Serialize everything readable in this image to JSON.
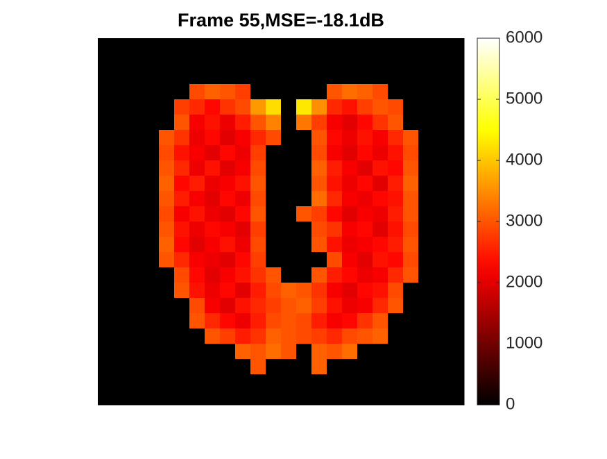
{
  "chart_data": {
    "type": "heatmap",
    "title": "Frame 55,MSE=-18.1dB",
    "colormap": "hot",
    "clim": [
      0,
      6000
    ],
    "cticks": [
      0,
      1000,
      2000,
      3000,
      4000,
      5000,
      6000
    ],
    "z": [
      [
        0,
        0,
        0,
        0,
        0,
        0,
        0,
        0,
        0,
        0,
        0,
        0,
        0,
        0,
        0,
        0,
        0,
        0,
        0,
        0,
        0,
        0,
        0,
        0
      ],
      [
        0,
        0,
        0,
        0,
        0,
        0,
        0,
        0,
        0,
        0,
        0,
        0,
        0,
        0,
        0,
        0,
        0,
        0,
        0,
        0,
        0,
        0,
        0,
        0
      ],
      [
        0,
        0,
        0,
        0,
        0,
        0,
        0,
        0,
        0,
        0,
        0,
        0,
        0,
        0,
        0,
        0,
        0,
        0,
        0,
        0,
        0,
        0,
        0,
        0
      ],
      [
        0,
        0,
        0,
        0,
        0,
        0,
        2900,
        3100,
        3000,
        2800,
        0,
        0,
        0,
        0,
        0,
        3000,
        3200,
        3100,
        2900,
        0,
        0,
        0,
        0,
        0
      ],
      [
        0,
        0,
        0,
        0,
        0,
        2800,
        2600,
        2300,
        2700,
        2900,
        3600,
        4200,
        0,
        4300,
        3500,
        2600,
        2400,
        2800,
        3000,
        2900,
        0,
        0,
        0,
        0
      ],
      [
        0,
        0,
        0,
        0,
        0,
        3000,
        2200,
        2400,
        2100,
        2500,
        3000,
        3400,
        0,
        3300,
        2800,
        2200,
        2000,
        2300,
        2700,
        3000,
        0,
        0,
        0,
        0
      ],
      [
        0,
        0,
        0,
        0,
        3000,
        2700,
        2100,
        2300,
        2000,
        2200,
        2600,
        2900,
        0,
        0,
        3000,
        2300,
        2100,
        2400,
        2200,
        2600,
        3000,
        0,
        0,
        0
      ],
      [
        0,
        0,
        0,
        0,
        2900,
        2400,
        2200,
        2000,
        2300,
        2100,
        2800,
        0,
        0,
        0,
        2900,
        2200,
        2000,
        2300,
        2100,
        2400,
        2900,
        0,
        0,
        0
      ],
      [
        0,
        0,
        0,
        0,
        3000,
        2600,
        2100,
        2400,
        2000,
        2200,
        2900,
        0,
        0,
        0,
        3100,
        2500,
        2200,
        2000,
        2400,
        2300,
        3000,
        0,
        0,
        0
      ],
      [
        0,
        0,
        0,
        0,
        3100,
        2300,
        2500,
        2100,
        2200,
        2400,
        3000,
        0,
        0,
        0,
        3000,
        2400,
        2100,
        2300,
        2000,
        2500,
        3100,
        0,
        0,
        0
      ],
      [
        0,
        0,
        0,
        0,
        3000,
        2500,
        2200,
        2000,
        2300,
        2100,
        2900,
        0,
        0,
        0,
        3200,
        2600,
        2200,
        2100,
        2300,
        2400,
        3000,
        0,
        0,
        0
      ],
      [
        0,
        0,
        0,
        0,
        2900,
        2200,
        2400,
        2100,
        2000,
        2300,
        3000,
        0,
        0,
        3000,
        2800,
        2300,
        2000,
        2200,
        2100,
        2500,
        3000,
        0,
        0,
        0
      ],
      [
        0,
        0,
        0,
        0,
        3000,
        2400,
        2100,
        2300,
        2200,
        2000,
        2800,
        0,
        0,
        0,
        2900,
        2700,
        2200,
        2300,
        2000,
        2400,
        2900,
        0,
        0,
        0
      ],
      [
        0,
        0,
        0,
        0,
        3100,
        2300,
        2000,
        2200,
        2400,
        2100,
        2900,
        0,
        0,
        0,
        3000,
        2400,
        2100,
        2200,
        2300,
        2500,
        3000,
        0,
        0,
        0
      ],
      [
        0,
        0,
        0,
        0,
        3000,
        2600,
        2200,
        2100,
        2000,
        2300,
        2800,
        0,
        0,
        0,
        0,
        2900,
        2200,
        2000,
        2400,
        2300,
        2900,
        0,
        0,
        0
      ],
      [
        0,
        0,
        0,
        0,
        0,
        2900,
        2300,
        2000,
        2200,
        2400,
        2700,
        3000,
        0,
        0,
        3000,
        2500,
        2300,
        2100,
        2200,
        2600,
        3000,
        0,
        0,
        0
      ],
      [
        0,
        0,
        0,
        0,
        0,
        3000,
        2400,
        2100,
        2300,
        2000,
        2500,
        2900,
        3100,
        3000,
        2700,
        2200,
        2000,
        2300,
        2400,
        2900,
        0,
        0,
        0,
        0
      ],
      [
        0,
        0,
        0,
        0,
        0,
        0,
        2900,
        2200,
        2000,
        2400,
        2600,
        2800,
        3000,
        3100,
        2800,
        2400,
        2100,
        2200,
        2600,
        3000,
        0,
        0,
        0,
        0
      ],
      [
        0,
        0,
        0,
        0,
        0,
        0,
        3000,
        2600,
        2300,
        2100,
        2500,
        2900,
        3000,
        2900,
        2500,
        2200,
        2300,
        2700,
        3000,
        0,
        0,
        0,
        0,
        0
      ],
      [
        0,
        0,
        0,
        0,
        0,
        0,
        0,
        3000,
        2800,
        2500,
        2700,
        3100,
        3000,
        2900,
        2800,
        2600,
        2900,
        3000,
        3100,
        0,
        0,
        0,
        0,
        0
      ],
      [
        0,
        0,
        0,
        0,
        0,
        0,
        0,
        0,
        0,
        3100,
        3000,
        3200,
        3000,
        0,
        3100,
        3000,
        3200,
        0,
        0,
        0,
        0,
        0,
        0,
        0
      ],
      [
        0,
        0,
        0,
        0,
        0,
        0,
        0,
        0,
        0,
        0,
        3000,
        0,
        0,
        0,
        3100,
        0,
        0,
        0,
        0,
        0,
        0,
        0,
        0,
        0
      ],
      [
        0,
        0,
        0,
        0,
        0,
        0,
        0,
        0,
        0,
        0,
        0,
        0,
        0,
        0,
        0,
        0,
        0,
        0,
        0,
        0,
        0,
        0,
        0,
        0
      ],
      [
        0,
        0,
        0,
        0,
        0,
        0,
        0,
        0,
        0,
        0,
        0,
        0,
        0,
        0,
        0,
        0,
        0,
        0,
        0,
        0,
        0,
        0,
        0,
        0
      ]
    ]
  }
}
